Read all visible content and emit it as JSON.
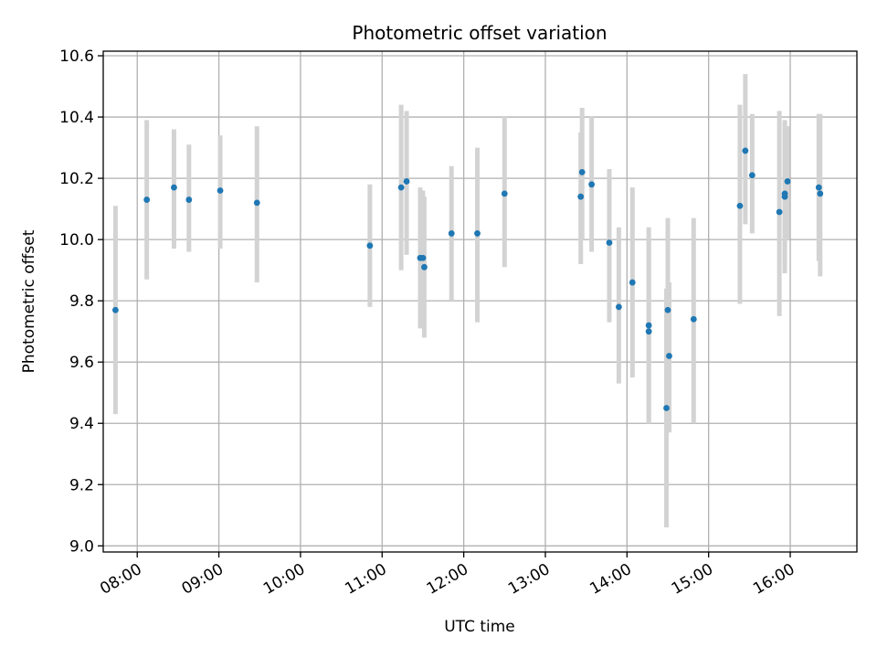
{
  "chart_data": {
    "type": "scatter",
    "title": "Photometric offset variation",
    "xlabel": "UTC time",
    "ylabel": "Photometric offset",
    "x_unit": "UTC time (HH:MM)",
    "xlim": [
      "07:35",
      "16:49"
    ],
    "ylim": [
      8.98,
      10.615
    ],
    "x_ticks": [
      "08:00",
      "09:00",
      "10:00",
      "11:00",
      "12:00",
      "13:00",
      "14:00",
      "15:00",
      "16:00"
    ],
    "y_ticks": [
      9.0,
      9.2,
      9.4,
      9.6,
      9.8,
      10.0,
      10.2,
      10.4,
      10.6
    ],
    "y_tick_labels": [
      "9.0",
      "9.2",
      "9.4",
      "9.6",
      "9.8",
      "10.0",
      "10.2",
      "10.4",
      "10.6"
    ],
    "grid": true,
    "point_color": "#1f77b4",
    "errorbar_color": "#d3d3d3",
    "points": [
      {
        "x": "07:44",
        "y": 9.77,
        "y_low": 9.43,
        "y_high": 10.11
      },
      {
        "x": "08:07",
        "y": 10.13,
        "y_low": 9.87,
        "y_high": 10.39
      },
      {
        "x": "08:27",
        "y": 10.17,
        "y_low": 9.97,
        "y_high": 10.36
      },
      {
        "x": "08:38",
        "y": 10.13,
        "y_low": 9.96,
        "y_high": 10.31
      },
      {
        "x": "09:01",
        "y": 10.16,
        "y_low": 9.97,
        "y_high": 10.34
      },
      {
        "x": "09:28",
        "y": 10.12,
        "y_low": 9.86,
        "y_high": 10.37
      },
      {
        "x": "10:51",
        "y": 9.98,
        "y_low": 9.78,
        "y_high": 10.18
      },
      {
        "x": "11:14",
        "y": 10.17,
        "y_low": 9.9,
        "y_high": 10.44
      },
      {
        "x": "11:18",
        "y": 10.19,
        "y_low": 9.95,
        "y_high": 10.42
      },
      {
        "x": "11:28",
        "y": 9.94,
        "y_low": 9.71,
        "y_high": 10.17
      },
      {
        "x": "11:30",
        "y": 9.94,
        "y_low": 9.72,
        "y_high": 10.16
      },
      {
        "x": "11:31",
        "y": 9.91,
        "y_low": 9.68,
        "y_high": 10.14
      },
      {
        "x": "11:51",
        "y": 10.02,
        "y_low": 9.8,
        "y_high": 10.24
      },
      {
        "x": "12:10",
        "y": 10.02,
        "y_low": 9.73,
        "y_high": 10.3
      },
      {
        "x": "12:30",
        "y": 10.15,
        "y_low": 9.91,
        "y_high": 10.4
      },
      {
        "x": "13:26",
        "y": 10.14,
        "y_low": 9.92,
        "y_high": 10.35
      },
      {
        "x": "13:27",
        "y": 10.22,
        "y_low": 10.0,
        "y_high": 10.43
      },
      {
        "x": "13:34",
        "y": 10.18,
        "y_low": 9.96,
        "y_high": 10.4
      },
      {
        "x": "13:47",
        "y": 9.99,
        "y_low": 9.73,
        "y_high": 10.23
      },
      {
        "x": "13:54",
        "y": 9.78,
        "y_low": 9.53,
        "y_high": 10.04
      },
      {
        "x": "14:04",
        "y": 9.86,
        "y_low": 9.55,
        "y_high": 10.17
      },
      {
        "x": "14:16",
        "y": 9.72,
        "y_low": 9.4,
        "y_high": 10.04
      },
      {
        "x": "14:16",
        "y": 9.7,
        "y_low": 9.4,
        "y_high": 10.0
      },
      {
        "x": "14:29",
        "y": 9.45,
        "y_low": 9.06,
        "y_high": 9.84
      },
      {
        "x": "14:30",
        "y": 9.77,
        "y_low": 9.46,
        "y_high": 10.07
      },
      {
        "x": "14:31",
        "y": 9.62,
        "y_low": 9.37,
        "y_high": 9.86
      },
      {
        "x": "14:49",
        "y": 9.74,
        "y_low": 9.4,
        "y_high": 10.07
      },
      {
        "x": "15:23",
        "y": 10.11,
        "y_low": 9.79,
        "y_high": 10.44
      },
      {
        "x": "15:27",
        "y": 10.29,
        "y_low": 10.05,
        "y_high": 10.54
      },
      {
        "x": "15:32",
        "y": 10.21,
        "y_low": 10.02,
        "y_high": 10.41
      },
      {
        "x": "15:52",
        "y": 10.09,
        "y_low": 9.75,
        "y_high": 10.42
      },
      {
        "x": "15:56",
        "y": 10.15,
        "y_low": 9.92,
        "y_high": 10.39
      },
      {
        "x": "15:56",
        "y": 10.14,
        "y_low": 9.89,
        "y_high": 10.38
      },
      {
        "x": "15:58",
        "y": 10.19,
        "y_low": 10.0,
        "y_high": 10.37
      },
      {
        "x": "16:21",
        "y": 10.17,
        "y_low": 9.93,
        "y_high": 10.41
      },
      {
        "x": "16:22",
        "y": 10.15,
        "y_low": 9.88,
        "y_high": 10.41
      }
    ]
  }
}
